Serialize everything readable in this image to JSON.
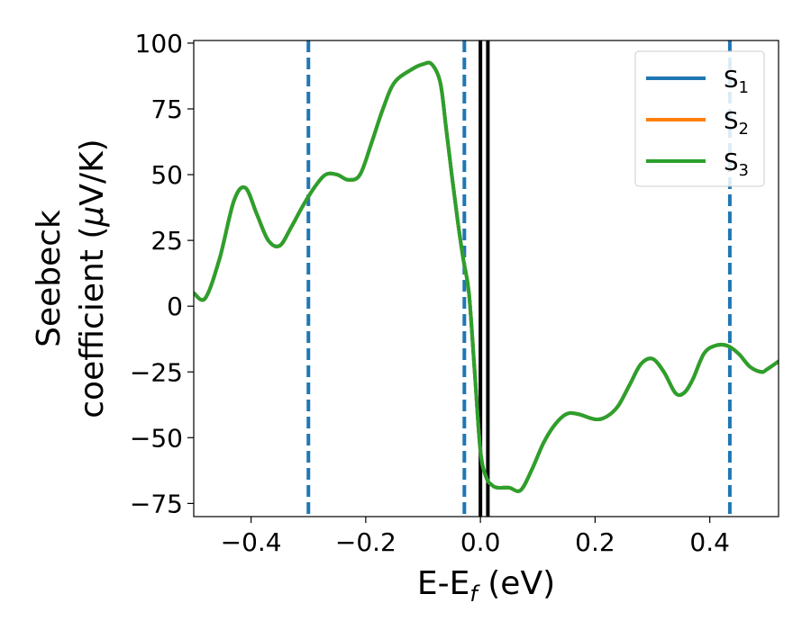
{
  "chart_data": {
    "type": "line",
    "xlabel": {
      "main": "E-E",
      "sub": "f",
      "tail": " (eV)"
    },
    "ylabel": {
      "line1": "Seebeck",
      "line2_pre": "coefficient  (",
      "mu": "μ",
      "line2_post": "V/K)"
    },
    "xlim": [
      -0.5,
      0.52
    ],
    "ylim": [
      -80,
      101
    ],
    "xticks": [
      -0.4,
      -0.2,
      0.0,
      0.2,
      0.4
    ],
    "xtick_labels": [
      "−0.4",
      "−0.2",
      "0.0",
      "0.2",
      "0.4"
    ],
    "yticks": [
      100,
      75,
      50,
      25,
      0,
      -25,
      -50,
      -75
    ],
    "ytick_labels": [
      "100",
      "75",
      "50",
      "25",
      "0",
      "−25",
      "−50",
      "−75"
    ],
    "grid": false,
    "legend_position": "top-right",
    "series": [
      {
        "name_main": "S",
        "name_sub": "1",
        "color": "#1f77b4",
        "x": [
          -0.5,
          -0.48,
          -0.455,
          -0.43,
          -0.41,
          -0.39,
          -0.37,
          -0.35,
          -0.33,
          -0.31,
          -0.29,
          -0.27,
          -0.25,
          -0.23,
          -0.21,
          -0.19,
          -0.17,
          -0.15,
          -0.12,
          -0.1,
          -0.085,
          -0.07,
          -0.06,
          -0.05,
          -0.04,
          -0.03,
          -0.02,
          -0.01,
          0.0,
          0.01,
          0.02,
          0.03,
          0.05,
          0.07,
          0.09,
          0.11,
          0.13,
          0.15,
          0.17,
          0.2,
          0.22,
          0.24,
          0.26,
          0.28,
          0.3,
          0.32,
          0.34,
          0.355,
          0.37,
          0.39,
          0.41,
          0.43,
          0.45,
          0.47,
          0.49,
          0.5,
          0.52
        ],
        "y": [
          5,
          3,
          18,
          40,
          45,
          35,
          25,
          23,
          30,
          38,
          45,
          50,
          50,
          48,
          50,
          62,
          75,
          85,
          90,
          92,
          92,
          85,
          68,
          50,
          33,
          18,
          5,
          -25,
          -55,
          -65,
          -68,
          -69,
          -69,
          -70,
          -62,
          -52,
          -45,
          -41,
          -41,
          -43,
          -42,
          -38,
          -30,
          -22,
          -20,
          -25,
          -33,
          -33,
          -28,
          -18,
          -15,
          -15,
          -18,
          -23,
          -25,
          -24,
          -21
        ]
      },
      {
        "name_main": "S",
        "name_sub": "2",
        "color": "#ff7f0e",
        "x": [
          -0.5,
          -0.48,
          -0.455,
          -0.43,
          -0.41,
          -0.39,
          -0.37,
          -0.35,
          -0.33,
          -0.31,
          -0.29,
          -0.27,
          -0.25,
          -0.23,
          -0.21,
          -0.19,
          -0.17,
          -0.15,
          -0.12,
          -0.1,
          -0.085,
          -0.07,
          -0.06,
          -0.05,
          -0.04,
          -0.03,
          -0.02,
          -0.01,
          0.0,
          0.01,
          0.02,
          0.03,
          0.05,
          0.07,
          0.09,
          0.11,
          0.13,
          0.15,
          0.17,
          0.2,
          0.22,
          0.24,
          0.26,
          0.28,
          0.3,
          0.32,
          0.34,
          0.355,
          0.37,
          0.39,
          0.41,
          0.43,
          0.45,
          0.47,
          0.49,
          0.5,
          0.52
        ],
        "y": [
          5,
          3,
          18,
          40,
          45,
          35,
          25,
          23,
          30,
          38,
          45,
          50,
          50,
          48,
          50,
          62,
          75,
          85,
          90,
          92,
          92,
          85,
          68,
          50,
          33,
          18,
          5,
          -25,
          -55,
          -65,
          -68,
          -69,
          -69,
          -70,
          -62,
          -52,
          -45,
          -41,
          -41,
          -43,
          -42,
          -38,
          -30,
          -22,
          -20,
          -25,
          -33,
          -33,
          -28,
          -18,
          -15,
          -15,
          -18,
          -23,
          -25,
          -24,
          -21
        ]
      },
      {
        "name_main": "S",
        "name_sub": "3",
        "color": "#2ca02c",
        "x": [
          -0.5,
          -0.48,
          -0.455,
          -0.43,
          -0.41,
          -0.39,
          -0.37,
          -0.35,
          -0.33,
          -0.31,
          -0.29,
          -0.27,
          -0.25,
          -0.23,
          -0.21,
          -0.19,
          -0.17,
          -0.15,
          -0.12,
          -0.1,
          -0.085,
          -0.07,
          -0.06,
          -0.05,
          -0.04,
          -0.03,
          -0.02,
          -0.01,
          0.0,
          0.01,
          0.02,
          0.03,
          0.05,
          0.07,
          0.09,
          0.11,
          0.13,
          0.15,
          0.17,
          0.2,
          0.22,
          0.24,
          0.26,
          0.28,
          0.3,
          0.32,
          0.34,
          0.355,
          0.37,
          0.39,
          0.41,
          0.43,
          0.45,
          0.47,
          0.49,
          0.5,
          0.52
        ],
        "y": [
          5,
          3,
          18,
          40,
          45,
          35,
          25,
          23,
          30,
          38,
          45,
          50,
          50,
          48,
          50,
          62,
          75,
          85,
          90,
          92,
          92,
          85,
          68,
          50,
          33,
          18,
          5,
          -25,
          -55,
          -65,
          -68,
          -69,
          -69,
          -70,
          -62,
          -52,
          -45,
          -41,
          -41,
          -43,
          -42,
          -38,
          -30,
          -22,
          -20,
          -25,
          -33,
          -33,
          -28,
          -18,
          -15,
          -15,
          -18,
          -23,
          -25,
          -24,
          -21
        ]
      }
    ],
    "vlines": [
      {
        "x": -0.3,
        "style": "dashed",
        "color": "#1f77b4"
      },
      {
        "x": -0.028,
        "style": "dashed",
        "color": "#1f77b4"
      },
      {
        "x": 0.435,
        "style": "dashed",
        "color": "#1f77b4"
      },
      {
        "x": 0.0,
        "style": "solid",
        "color": "#000000"
      },
      {
        "x": 0.013,
        "style": "solid",
        "color": "#000000"
      }
    ]
  }
}
